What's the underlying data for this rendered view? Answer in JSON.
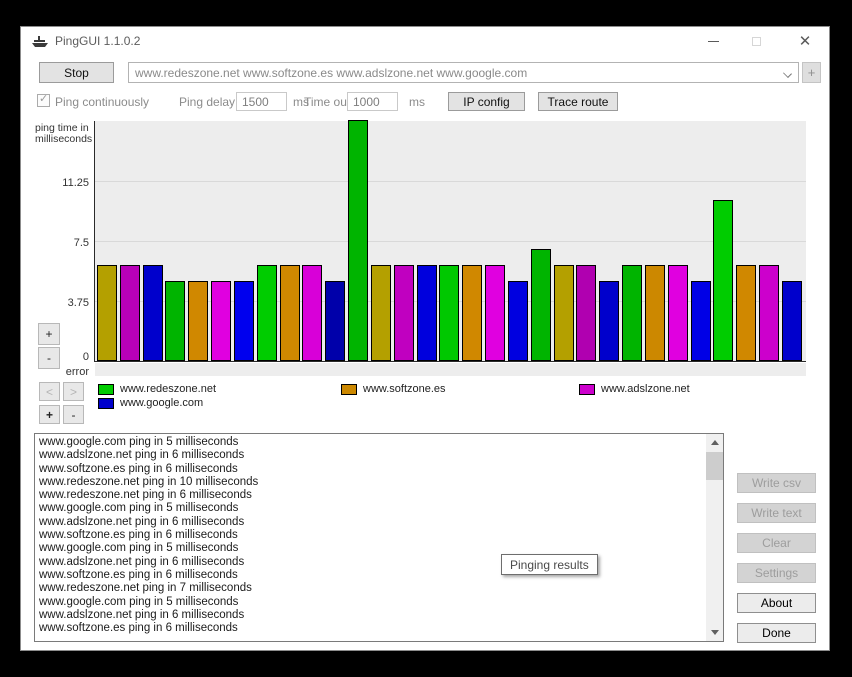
{
  "window": {
    "title": "PingGUI 1.1.0.2",
    "close_glyph": "✕"
  },
  "toolbar": {
    "stop_label": "Stop",
    "address_value": "www.redeszone.net www.softzone.es www.adslzone.net www.google.com",
    "add_button_label": "+"
  },
  "options": {
    "ping_continuously_label": "Ping continuously",
    "ping_continuously_checked": true,
    "check_glyph": "✓",
    "ping_delay_label": "Ping delay",
    "ping_delay_value": "1500",
    "ping_delay_unit": "ms",
    "timeout_label": "Time out",
    "timeout_value": "1000",
    "timeout_unit": "ms",
    "ipconfig_label": "IP config",
    "traceroute_label": "Trace route"
  },
  "chart_controls": {
    "scale_up": "+",
    "scale_down": "-",
    "prev": "<",
    "next": ">",
    "zoom_in": "+",
    "zoom_out": "-"
  },
  "chart_data": {
    "type": "bar",
    "ylabel": "ping time in milliseconds",
    "ylabel_line1": "ping time in",
    "ylabel_line2": "milliseconds",
    "ylim": [
      0,
      15
    ],
    "yticks": [
      11.25,
      7.5,
      3.75,
      0
    ],
    "ytick_labels": [
      "11.25",
      "7.5",
      "3.75",
      "0"
    ],
    "error_label": "error",
    "grid": true,
    "legend_position": "bottom",
    "legend": [
      {
        "name": "www.redeszone.net",
        "color": "#00cc00"
      },
      {
        "name": "www.softzone.es",
        "color": "#cc8800"
      },
      {
        "name": "www.adslzone.net",
        "color": "#cc00cc"
      },
      {
        "name": "www.google.com",
        "color": "#0000cc"
      }
    ],
    "bars": [
      {
        "host": "www.softzone.es",
        "value": 6,
        "color": "#b4a000"
      },
      {
        "host": "www.adslzone.net",
        "value": 6,
        "color": "#b800b8"
      },
      {
        "host": "www.google.com",
        "value": 6,
        "color": "#0000cc"
      },
      {
        "host": "www.redeszone.net",
        "value": 5,
        "color": "#00b400"
      },
      {
        "host": "www.softzone.es",
        "value": 5,
        "color": "#d08800"
      },
      {
        "host": "www.adslzone.net",
        "value": 5,
        "color": "#e000e0"
      },
      {
        "host": "www.google.com",
        "value": 5,
        "color": "#0000ee"
      },
      {
        "host": "www.redeszone.net",
        "value": 6,
        "color": "#00cc00"
      },
      {
        "host": "www.softzone.es",
        "value": 6,
        "color": "#d08800"
      },
      {
        "host": "www.adslzone.net",
        "value": 6,
        "color": "#d800d8"
      },
      {
        "host": "www.google.com",
        "value": 5,
        "color": "#0000aa"
      },
      {
        "host": "www.redeszone.net",
        "value": 15,
        "color": "#00b400"
      },
      {
        "host": "www.softzone.es",
        "value": 6,
        "color": "#b4a000"
      },
      {
        "host": "www.adslzone.net",
        "value": 6,
        "color": "#c000c0"
      },
      {
        "host": "www.google.com",
        "value": 6,
        "color": "#0000dd"
      },
      {
        "host": "www.redeszone.net",
        "value": 6,
        "color": "#00c800"
      },
      {
        "host": "www.softzone.es",
        "value": 6,
        "color": "#d08800"
      },
      {
        "host": "www.adslzone.net",
        "value": 6,
        "color": "#e000e0"
      },
      {
        "host": "www.google.com",
        "value": 5,
        "color": "#0000e0"
      },
      {
        "host": "www.redeszone.net",
        "value": 7,
        "color": "#00b400"
      },
      {
        "host": "www.softzone.es",
        "value": 6,
        "color": "#b4a000"
      },
      {
        "host": "www.adslzone.net",
        "value": 6,
        "color": "#b000b0"
      },
      {
        "host": "www.google.com",
        "value": 5,
        "color": "#0000cc"
      },
      {
        "host": "www.redeszone.net",
        "value": 6,
        "color": "#00b400"
      },
      {
        "host": "www.softzone.es",
        "value": 6,
        "color": "#cc8800"
      },
      {
        "host": "www.adslzone.net",
        "value": 6,
        "color": "#e000e0"
      },
      {
        "host": "www.google.com",
        "value": 5,
        "color": "#0000e6"
      },
      {
        "host": "www.redeszone.net",
        "value": 10,
        "color": "#00cc00"
      },
      {
        "host": "www.softzone.es",
        "value": 6,
        "color": "#d08800"
      },
      {
        "host": "www.adslzone.net",
        "value": 6,
        "color": "#cc00cc"
      },
      {
        "host": "www.google.com",
        "value": 5,
        "color": "#0000cc"
      }
    ]
  },
  "log": {
    "lines": [
      "www.google.com ping in 5 milliseconds",
      "www.adslzone.net ping in 6 milliseconds",
      "www.softzone.es ping in 6 milliseconds",
      "www.redeszone.net ping in 10 milliseconds",
      "www.redeszone.net ping in 6 milliseconds",
      "www.google.com ping in 5 milliseconds",
      "www.adslzone.net ping in 6 milliseconds",
      "www.softzone.es ping in 6 milliseconds",
      "www.google.com ping in 5 milliseconds",
      "www.adslzone.net ping in 6 milliseconds",
      "www.softzone.es ping in 6 milliseconds",
      "www.redeszone.net ping in 7 milliseconds",
      "www.google.com ping in 5 milliseconds",
      "www.adslzone.net ping in 6 milliseconds",
      "www.softzone.es ping in 6 milliseconds"
    ]
  },
  "tooltip": {
    "text": "Pinging results"
  },
  "side_buttons": [
    {
      "label": "Write csv",
      "enabled": false
    },
    {
      "label": "Write text",
      "enabled": false
    },
    {
      "label": "Clear",
      "enabled": false
    },
    {
      "label": "Settings",
      "enabled": false
    },
    {
      "label": "About",
      "enabled": true
    },
    {
      "label": "Done",
      "enabled": true
    }
  ]
}
